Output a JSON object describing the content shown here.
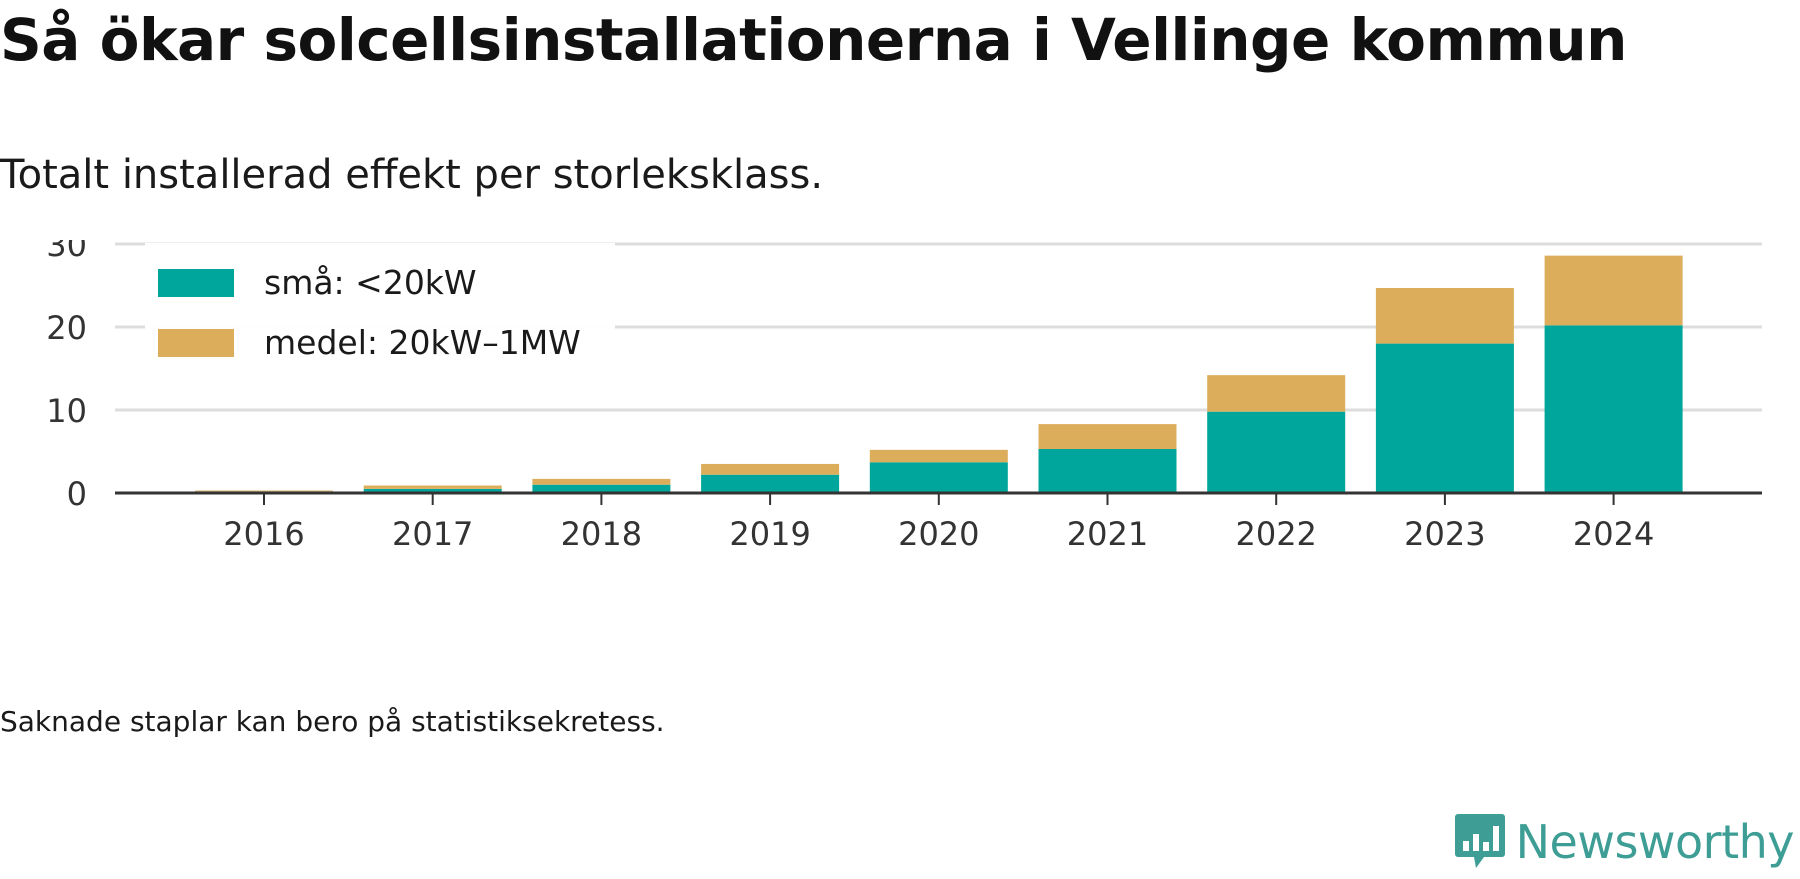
{
  "title": "Så ökar solcellsinstallationerna i Vellinge kommun",
  "subtitle": "Totalt installerad effekt per storleksklass.",
  "note": "Saknade staplar kan bero på statistiksekretess.",
  "brand": {
    "name": "Newsworthy",
    "logo_icon": "newsworthy-chart-bubble-icon",
    "color": "#3e9e95"
  },
  "chart_data": {
    "type": "bar",
    "stacked": true,
    "categories": [
      "2016",
      "2017",
      "2018",
      "2019",
      "2020",
      "2021",
      "2022",
      "2023",
      "2024"
    ],
    "series": [
      {
        "name": "små: <20kW",
        "color": "#00a59b",
        "values": [
          0.2,
          0.5,
          1.0,
          2.2,
          3.7,
          5.3,
          9.8,
          18.0,
          20.2
        ]
      },
      {
        "name": "medel: 20kW–1MW",
        "color": "#dcae5c",
        "values": [
          0.1,
          0.4,
          0.7,
          1.3,
          1.5,
          3.0,
          4.4,
          6.7,
          8.4
        ]
      }
    ],
    "yticks": [
      0,
      10,
      20,
      30
    ],
    "ylim": [
      0,
      30
    ],
    "grid": true,
    "legend": "top-left",
    "xlabel": "",
    "ylabel": ""
  }
}
